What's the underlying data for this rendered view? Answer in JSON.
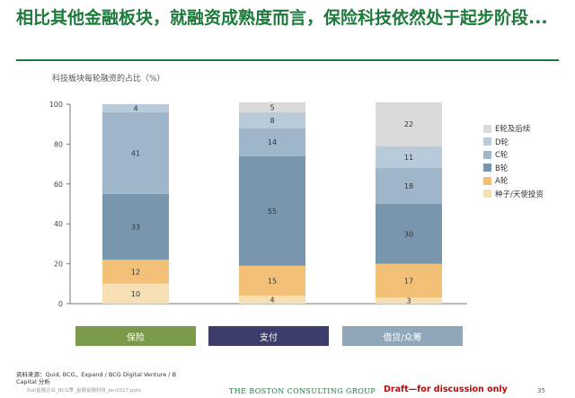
{
  "title": "相比其他金融板块，就融资成熟度而言，保险科技依然处于起步阶段...",
  "chart_data": {
    "type": "bar",
    "stacked": true,
    "title": "",
    "ylabel": "科技板块每轮融资的占比（%）",
    "xlabel": "",
    "ylim": [
      0,
      100
    ],
    "yticks": [
      0,
      20,
      40,
      60,
      80,
      100
    ],
    "grid": false,
    "legend_position": "right",
    "categories": [
      "保险",
      "支付",
      "借贷/众筹"
    ],
    "category_colors": [
      "#7a9a4a",
      "#3d3d6b",
      "#8fa7b8"
    ],
    "series": [
      {
        "name": "种子/天使投资",
        "color": "#f7dfb4",
        "values": [
          10,
          4,
          3
        ]
      },
      {
        "name": "A轮",
        "color": "#f3c078",
        "values": [
          12,
          15,
          17
        ]
      },
      {
        "name": "B轮",
        "color": "#7896ad",
        "values": [
          33,
          55,
          30
        ]
      },
      {
        "name": "C轮",
        "color": "#9fb5c9",
        "values": [
          41,
          14,
          18
        ]
      },
      {
        "name": "D轮",
        "color": "#b9cbda",
        "values": [
          4,
          8,
          11
        ]
      },
      {
        "name": "E轮及后续",
        "color": "#dadada",
        "values": [
          null,
          5,
          22
        ]
      }
    ]
  },
  "source": "资料来源：Quid, BCG，Expand / BCG Digital Venture / B Capital 分析",
  "footer": {
    "file": "Ruli金融企业_BCG季_金融金融科技_Jan2017.pptx",
    "brand": "THE BOSTON CONSULTING GROUP",
    "draft": "Draft—for discussion only",
    "page": "35"
  }
}
